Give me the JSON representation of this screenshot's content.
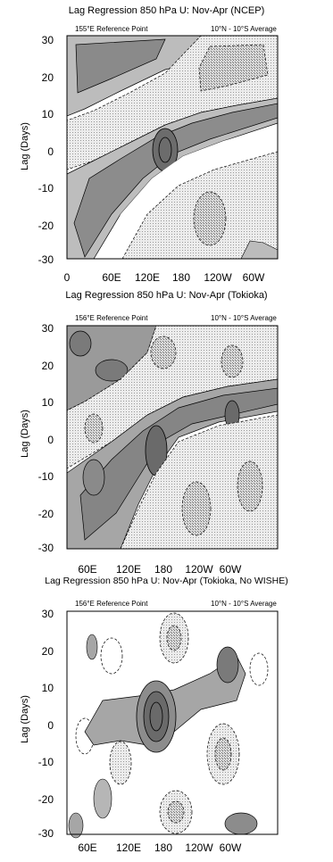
{
  "chart_data": [
    {
      "type": "contour",
      "title": "Lag Regression 850 hPa U: Nov-Apr (NCEP)",
      "left_subtitle": "155°E Reference Point",
      "right_subtitle": "10°N - 10°S Average",
      "ylabel": "Lag (Days)",
      "ylim": [
        -30,
        30
      ],
      "y_ticks": [
        "30",
        "20",
        "10",
        "0",
        "-10",
        "-20",
        "-30"
      ],
      "x_ticks": [
        "0",
        "60E",
        "120E",
        "180",
        "120W",
        "60W"
      ],
      "shading": [
        "positive: dark grey",
        "negative: stippled light grey"
      ],
      "features": [
        "eastward-propagating positive band crossing 180 at lag 0",
        "negative bands before and after"
      ]
    },
    {
      "type": "contour",
      "title": "Lag Regression 850 hPa U: Nov-Apr (Tokioka)",
      "left_subtitle": "156°E Reference Point",
      "right_subtitle": "10°N - 10°S Average",
      "ylabel": "Lag (Days)",
      "ylim": [
        -30,
        30
      ],
      "y_ticks": [
        "30",
        "20",
        "10",
        "0",
        "-10",
        "-20",
        "-30"
      ],
      "x_ticks": [
        "60E",
        "120E",
        "180",
        "120W",
        "60W"
      ],
      "features": [
        "strong eastward propagation",
        "alternating positive and negative bands"
      ]
    },
    {
      "type": "contour",
      "title": "Lag Regression 850 hPa U: Nov-Apr (Tokioka, No WISHE)",
      "left_subtitle": "156°E Reference Point",
      "right_subtitle": "10°N - 10°S Average",
      "ylabel": "Lag (Days)",
      "ylim": [
        -30,
        30
      ],
      "y_ticks": [
        "30",
        "20",
        "10",
        "0",
        "-10",
        "-20",
        "-30"
      ],
      "x_ticks": [
        "60E",
        "120E",
        "180",
        "120W",
        "60W"
      ],
      "features": [
        "weak propagation",
        "isolated blobs",
        "strong positive centre near 180 at lag 0"
      ]
    }
  ],
  "colors": {
    "positive": "#8c8c8c",
    "positive_light": "#c4c4c4",
    "negative": "#e4e4e4",
    "frame": "#000000"
  }
}
